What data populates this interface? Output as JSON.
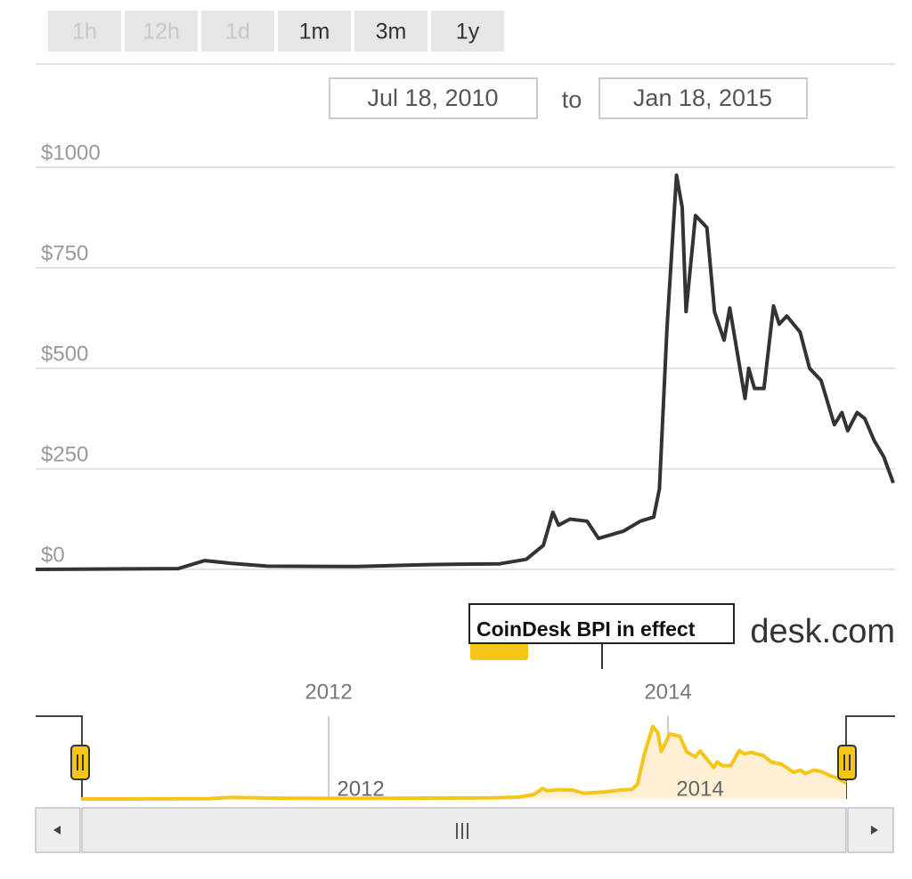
{
  "range_buttons": [
    {
      "label": "1h",
      "enabled": false
    },
    {
      "label": "12h",
      "enabled": false
    },
    {
      "label": "1d",
      "enabled": false
    },
    {
      "label": "1m",
      "enabled": true
    },
    {
      "label": "3m",
      "enabled": true
    },
    {
      "label": "1y",
      "enabled": true
    }
  ],
  "date_range": {
    "from": "Jul 18, 2010",
    "separator": "to",
    "to": "Jan 18, 2015"
  },
  "tooltip": "CoinDesk BPI in effect",
  "watermark": "desk.com",
  "chart_data": {
    "type": "line",
    "x": [
      2010.54,
      2011.29,
      2011.43,
      2011.57,
      2011.76,
      2012.23,
      2012.61,
      2012.98,
      2013.12,
      2013.21,
      2013.26,
      2013.29,
      2013.35,
      2013.44,
      2013.5,
      2013.63,
      2013.72,
      2013.79,
      2013.82,
      2013.86,
      2013.91,
      2013.94,
      2013.96,
      2014.01,
      2014.07,
      2014.11,
      2014.16,
      2014.19,
      2014.27,
      2014.29,
      2014.32,
      2014.37,
      2014.42,
      2014.45,
      2014.49,
      2014.56,
      2014.61,
      2014.67,
      2014.74,
      2014.78,
      2014.81,
      2014.86,
      2014.9,
      2014.95,
      2015.0,
      2015.05
    ],
    "series": [
      {
        "color": "#333333",
        "values": [
          0,
          2,
          22,
          15,
          8,
          7,
          12,
          14,
          25,
          60,
          142,
          110,
          125,
          120,
          77,
          95,
          120,
          130,
          200,
          600,
          980,
          900,
          641,
          880,
          850,
          640,
          570,
          650,
          425,
          500,
          450,
          450,
          655,
          610,
          630,
          590,
          500,
          470,
          360,
          390,
          345,
          390,
          375,
          320,
          280,
          215
        ]
      }
    ],
    "xlim": [
      2010.54,
      2015.05
    ],
    "ylim": [
      0,
      1000
    ],
    "yticks": [
      {
        "value": 0,
        "label": "$0"
      },
      {
        "value": 250,
        "label": "$250"
      },
      {
        "value": 500,
        "label": "$500"
      },
      {
        "value": 750,
        "label": "$750"
      },
      {
        "value": 1000,
        "label": "$1000"
      }
    ],
    "grid": true,
    "navigator": {
      "color": "#f5c518",
      "fill": "#fdf0d5",
      "xticks": [
        2012,
        2014
      ]
    }
  }
}
